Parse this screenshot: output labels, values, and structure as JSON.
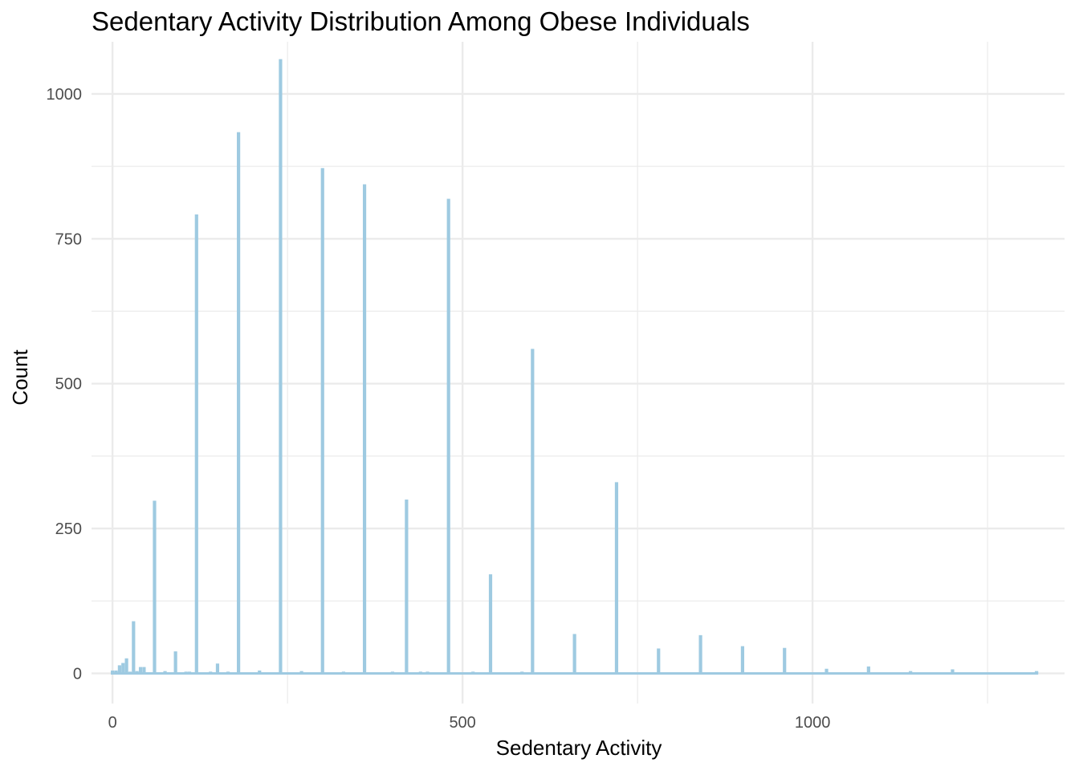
{
  "chart_data": {
    "type": "bar",
    "title": "Sedentary Activity Distribution Among Obese Individuals",
    "xlabel": "Sedentary Activity",
    "ylabel": "Count",
    "xlim": [
      -30,
      1360
    ],
    "ylim": [
      -52,
      1090
    ],
    "x_ticks": [
      0,
      500,
      1000
    ],
    "x_minor_ticks": [
      250,
      750,
      1250
    ],
    "y_ticks": [
      0,
      250,
      500,
      750,
      1000
    ],
    "y_minor_ticks": [
      125,
      375,
      625,
      875
    ],
    "bar_width": 4.8,
    "grid": true,
    "bar_color": "#9ecae1",
    "grid_color": "#ebebeb",
    "points": [
      {
        "x": 0,
        "y": 5
      },
      {
        "x": 5,
        "y": 5
      },
      {
        "x": 10,
        "y": 14
      },
      {
        "x": 15,
        "y": 18
      },
      {
        "x": 20,
        "y": 26
      },
      {
        "x": 25,
        "y": 3
      },
      {
        "x": 30,
        "y": 90
      },
      {
        "x": 35,
        "y": 4
      },
      {
        "x": 40,
        "y": 11
      },
      {
        "x": 45,
        "y": 11
      },
      {
        "x": 60,
        "y": 298
      },
      {
        "x": 75,
        "y": 4
      },
      {
        "x": 90,
        "y": 38
      },
      {
        "x": 105,
        "y": 3
      },
      {
        "x": 110,
        "y": 3
      },
      {
        "x": 120,
        "y": 792
      },
      {
        "x": 140,
        "y": 3
      },
      {
        "x": 150,
        "y": 17
      },
      {
        "x": 165,
        "y": 3
      },
      {
        "x": 180,
        "y": 934
      },
      {
        "x": 210,
        "y": 5
      },
      {
        "x": 240,
        "y": 1060
      },
      {
        "x": 270,
        "y": 4
      },
      {
        "x": 300,
        "y": 872
      },
      {
        "x": 330,
        "y": 3
      },
      {
        "x": 360,
        "y": 844
      },
      {
        "x": 400,
        "y": 3
      },
      {
        "x": 420,
        "y": 300
      },
      {
        "x": 440,
        "y": 3
      },
      {
        "x": 450,
        "y": 3
      },
      {
        "x": 480,
        "y": 819
      },
      {
        "x": 515,
        "y": 3
      },
      {
        "x": 540,
        "y": 171
      },
      {
        "x": 585,
        "y": 3
      },
      {
        "x": 600,
        "y": 560
      },
      {
        "x": 660,
        "y": 68
      },
      {
        "x": 720,
        "y": 330
      },
      {
        "x": 780,
        "y": 43
      },
      {
        "x": 840,
        "y": 66
      },
      {
        "x": 900,
        "y": 47
      },
      {
        "x": 960,
        "y": 44
      },
      {
        "x": 1020,
        "y": 8
      },
      {
        "x": 1080,
        "y": 12
      },
      {
        "x": 1140,
        "y": 4
      },
      {
        "x": 1200,
        "y": 7
      },
      {
        "x": 1320,
        "y": 4
      }
    ]
  }
}
